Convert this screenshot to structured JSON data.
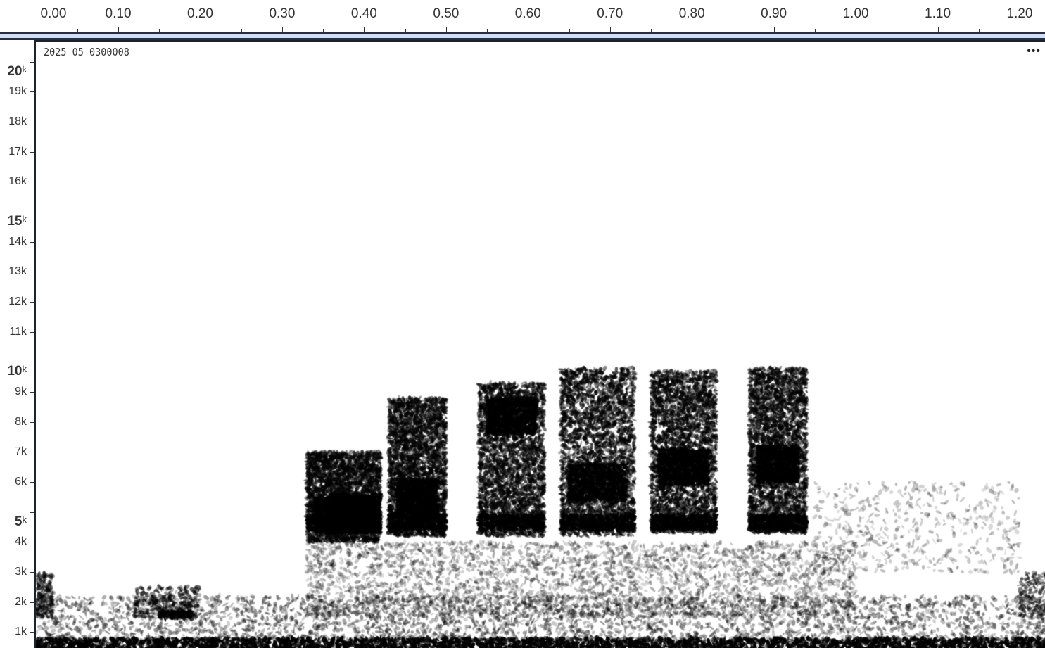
{
  "time_axis": {
    "labels": [
      "0.00",
      "0.10",
      "0.20",
      "0.30",
      "0.40",
      "0.50",
      "0.60",
      "0.70",
      "0.80",
      "0.90",
      "1.00",
      "1.10",
      "1.20"
    ]
  },
  "freq_axis": {
    "labels": [
      {
        "num": "20",
        "unit": "k",
        "major": true
      },
      {
        "num": "19",
        "unit": "k",
        "major": false
      },
      {
        "num": "18",
        "unit": "k",
        "major": false
      },
      {
        "num": "17",
        "unit": "k",
        "major": false
      },
      {
        "num": "16",
        "unit": "k",
        "major": false
      },
      {
        "num": "15",
        "unit": "k",
        "major": true
      },
      {
        "num": "14",
        "unit": "k",
        "major": false
      },
      {
        "num": "13",
        "unit": "k",
        "major": false
      },
      {
        "num": "12",
        "unit": "k",
        "major": false
      },
      {
        "num": "11",
        "unit": "k",
        "major": false
      },
      {
        "num": "10",
        "unit": "k",
        "major": true
      },
      {
        "num": "9",
        "unit": "k",
        "major": false
      },
      {
        "num": "8",
        "unit": "k",
        "major": false
      },
      {
        "num": "7",
        "unit": "k",
        "major": false
      },
      {
        "num": "6",
        "unit": "k",
        "major": false
      },
      {
        "num": "5",
        "unit": "k",
        "major": true
      },
      {
        "num": "4",
        "unit": "k",
        "major": false
      },
      {
        "num": "3",
        "unit": "k",
        "major": false
      },
      {
        "num": "2",
        "unit": "k",
        "major": false
      },
      {
        "num": "1",
        "unit": "k",
        "major": false
      }
    ]
  },
  "plot": {
    "file_name": "2025_05_0300008",
    "more_label": "•••"
  },
  "colors": {
    "axis_band": "#cfe0f7",
    "border": "#1d2233",
    "ink": "#000000"
  }
}
